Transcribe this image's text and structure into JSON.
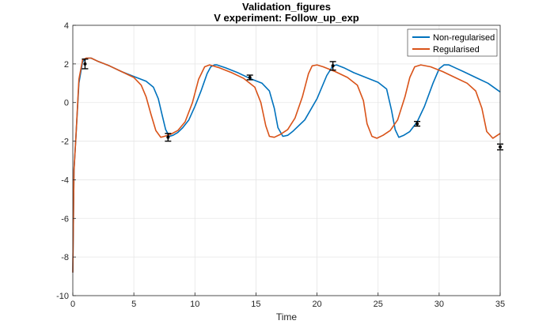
{
  "chart_data": {
    "type": "line",
    "title": "Validation_figures",
    "subtitle": "V experiment: Follow_up_exp",
    "xlabel": "Time",
    "ylabel": "",
    "xlim": [
      0,
      35
    ],
    "ylim": [
      -10,
      4
    ],
    "xticks": [
      0,
      5,
      10,
      15,
      20,
      25,
      30,
      35
    ],
    "yticks": [
      -10,
      -8,
      -6,
      -4,
      -2,
      0,
      2,
      4
    ],
    "grid": true,
    "legend_position": "top-right",
    "series": [
      {
        "name": "Non-regularised",
        "color": "#0072BD",
        "x": [
          0,
          0.1,
          0.25,
          0.5,
          0.8,
          1.1,
          1.5,
          2.0,
          3.0,
          4.0,
          5.0,
          6.0,
          6.6,
          7.0,
          7.3,
          7.6,
          7.9,
          8.2,
          8.6,
          9.0,
          9.5,
          10.0,
          10.5,
          11.0,
          11.3,
          11.6,
          11.8,
          12.5,
          13.5,
          14.5,
          15.5,
          16.1,
          16.5,
          16.8,
          17.2,
          17.6,
          18.0,
          19.0,
          20.0,
          20.8,
          21.3,
          21.6,
          22.2,
          23.0,
          24.0,
          25.0,
          25.7,
          26.1,
          26.4,
          26.7,
          27.1,
          27.6,
          28.2,
          28.8,
          29.5,
          30.0,
          30.4,
          30.8,
          31.3,
          32.0,
          33.0,
          34.0,
          35.0
        ],
        "values": [
          -8.8,
          -3.5,
          -1.8,
          1.0,
          2.1,
          2.3,
          2.3,
          2.15,
          1.9,
          1.6,
          1.35,
          1.1,
          0.8,
          0.2,
          -0.6,
          -1.4,
          -1.75,
          -1.7,
          -1.55,
          -1.3,
          -0.9,
          -0.2,
          0.6,
          1.5,
          1.85,
          1.95,
          1.95,
          1.8,
          1.55,
          1.25,
          1.0,
          0.6,
          -0.3,
          -1.3,
          -1.75,
          -1.7,
          -1.5,
          -0.9,
          0.2,
          1.4,
          1.9,
          1.95,
          1.8,
          1.55,
          1.3,
          1.05,
          0.7,
          -0.4,
          -1.4,
          -1.8,
          -1.7,
          -1.5,
          -1.0,
          -0.2,
          1.0,
          1.75,
          1.95,
          1.95,
          1.8,
          1.6,
          1.3,
          1.0,
          0.55
        ]
      },
      {
        "name": "Regularised",
        "color": "#D95319",
        "x": [
          0,
          0.1,
          0.25,
          0.5,
          0.8,
          1.1,
          1.5,
          2.0,
          3.0,
          4.0,
          5.0,
          5.6,
          6.0,
          6.4,
          6.8,
          7.2,
          7.5,
          8.0,
          8.6,
          9.2,
          9.8,
          10.3,
          10.8,
          11.2,
          12.0,
          13.0,
          14.0,
          14.9,
          15.4,
          15.8,
          16.1,
          16.5,
          17.0,
          17.6,
          18.2,
          18.8,
          19.3,
          19.6,
          20.0,
          20.5,
          21.5,
          22.5,
          23.3,
          23.8,
          24.1,
          24.5,
          24.9,
          25.4,
          26.0,
          26.6,
          27.2,
          27.6,
          28.0,
          28.5,
          29.3,
          30.3,
          31.3,
          32.3,
          33.0,
          33.5,
          33.9,
          34.4,
          35.0
        ],
        "values": [
          -8.8,
          -3.5,
          -1.8,
          1.2,
          2.2,
          2.3,
          2.3,
          2.15,
          1.9,
          1.6,
          1.3,
          0.9,
          0.3,
          -0.6,
          -1.45,
          -1.8,
          -1.75,
          -1.65,
          -1.45,
          -1.0,
          0.0,
          1.2,
          1.85,
          1.95,
          1.8,
          1.55,
          1.25,
          0.8,
          0.0,
          -1.2,
          -1.75,
          -1.8,
          -1.65,
          -1.4,
          -0.8,
          0.3,
          1.5,
          1.9,
          1.95,
          1.85,
          1.6,
          1.3,
          0.9,
          0.1,
          -1.1,
          -1.75,
          -1.85,
          -1.7,
          -1.45,
          -0.9,
          0.3,
          1.3,
          1.85,
          1.95,
          1.85,
          1.6,
          1.3,
          1.0,
          0.6,
          -0.3,
          -1.5,
          -1.85,
          -1.6
        ]
      }
    ],
    "error_bars": {
      "color": "#000000",
      "x": [
        1.0,
        7.8,
        14.5,
        21.3,
        28.2,
        35.0
      ],
      "values": [
        2.0,
        -1.8,
        1.3,
        1.9,
        -1.1,
        -2.3
      ],
      "error": [
        0.25,
        0.2,
        0.12,
        0.22,
        0.12,
        0.15
      ]
    }
  }
}
